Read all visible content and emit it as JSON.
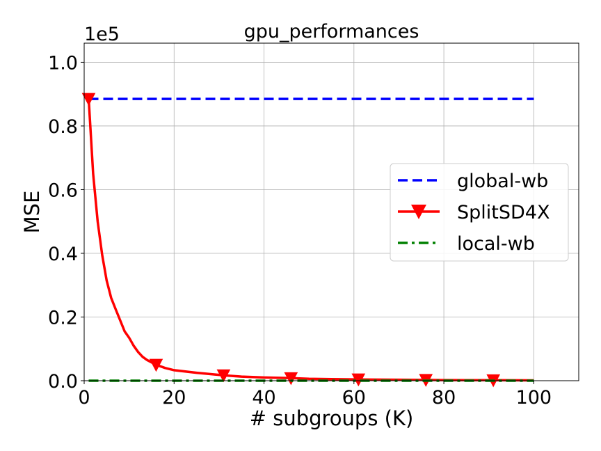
{
  "chart_data": {
    "type": "line",
    "title": "gpu_performances",
    "xlabel": "# subgroups (K)",
    "ylabel": "MSE",
    "y_offset_label": "1e5",
    "xlim": [
      0,
      110
    ],
    "ylim": [
      0,
      1.06
    ],
    "xticks": [
      0,
      20,
      40,
      60,
      80,
      100
    ],
    "xtick_labels": [
      "0",
      "20",
      "40",
      "60",
      "80",
      "100"
    ],
    "yticks": [
      0.0,
      0.2,
      0.4,
      0.6,
      0.8,
      1.0
    ],
    "ytick_labels": [
      "0.0",
      "0.2",
      "0.4",
      "0.6",
      "0.8",
      "1.0"
    ],
    "grid": true,
    "legend_position": "center-right",
    "series": [
      {
        "name": "global-wb",
        "color": "#0000ff",
        "style": "dashed",
        "x": [
          1,
          100
        ],
        "y": [
          0.885,
          0.885
        ]
      },
      {
        "name": "SplitSD4X",
        "color": "#ff0000",
        "style": "solid",
        "marker": "triangle-down",
        "x": [
          1,
          2,
          3,
          4,
          5,
          6,
          7,
          8,
          9,
          10,
          11,
          12,
          13,
          14,
          16,
          18,
          20,
          25,
          31,
          35,
          40,
          46,
          50,
          55,
          61,
          70,
          76,
          80,
          85,
          91,
          100
        ],
        "y": [
          0.885,
          0.65,
          0.5,
          0.395,
          0.315,
          0.26,
          0.225,
          0.19,
          0.155,
          0.135,
          0.11,
          0.09,
          0.075,
          0.065,
          0.05,
          0.04,
          0.033,
          0.025,
          0.017,
          0.013,
          0.01,
          0.008,
          0.006,
          0.005,
          0.004,
          0.003,
          0.0025,
          0.002,
          0.0018,
          0.0015,
          0.001
        ],
        "marker_x": [
          1,
          16,
          31,
          46,
          61,
          76,
          91
        ],
        "marker_y": [
          0.885,
          0.05,
          0.017,
          0.008,
          0.004,
          0.0025,
          0.0015
        ]
      },
      {
        "name": "local-wb",
        "color": "#008000",
        "style": "dashdot",
        "x": [
          1,
          100
        ],
        "y": [
          0.0,
          0.0
        ]
      }
    ]
  }
}
